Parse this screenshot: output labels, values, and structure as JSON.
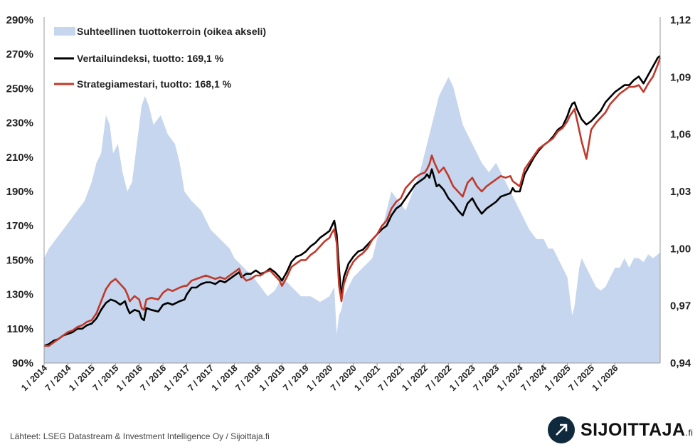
{
  "chart_data": {
    "type": "line",
    "title": "",
    "y_left": {
      "ticks": [
        "90%",
        "110%",
        "130%",
        "150%",
        "170%",
        "190%",
        "210%",
        "230%",
        "250%",
        "270%",
        "290%"
      ],
      "ylim": [
        90,
        290
      ]
    },
    "y_right": {
      "ticks": [
        "0,94",
        "0,97",
        "1,00",
        "1,03",
        "1,06",
        "1,09",
        "1,12"
      ],
      "ylim": [
        0.94,
        1.12
      ]
    },
    "x_ticks": [
      "1 / 2014",
      "7 / 2014",
      "1 / 2015",
      "7 / 2015",
      "1 / 2016",
      "7 / 2016",
      "1 / 2017",
      "7 / 2017",
      "1 / 2018",
      "7 / 2018",
      "1 / 2019",
      "7 / 2019",
      "1 / 2020",
      "7 / 2020",
      "1 / 2021",
      "7 / 2021",
      "1 / 2022",
      "7 / 2022",
      "1 / 2023",
      "7 / 2023",
      "1 / 2024",
      "7 / 2024",
      "1 / 2025",
      "7 / 2025",
      "1 / 2026"
    ],
    "xlim": [
      2014.0,
      2026.95
    ],
    "grid": false,
    "legend_position": "top-left",
    "series": [
      {
        "name": "Suhteellinen tuottokerroin (oikea akseli)",
        "type": "area",
        "axis": "right",
        "color": "#c5d6ee",
        "x": [
          2014.0,
          2014.1,
          2014.25,
          2014.4,
          2014.55,
          2014.7,
          2014.85,
          2015.0,
          2015.1,
          2015.2,
          2015.3,
          2015.38,
          2015.45,
          2015.55,
          2015.65,
          2015.75,
          2015.85,
          2015.95,
          2016.05,
          2016.12,
          2016.2,
          2016.3,
          2016.45,
          2016.6,
          2016.75,
          2016.85,
          2016.95,
          2017.1,
          2017.3,
          2017.5,
          2017.7,
          2017.9,
          2018.0,
          2018.2,
          2018.4,
          2018.55,
          2018.7,
          2018.85,
          2019.0,
          2019.2,
          2019.4,
          2019.6,
          2019.8,
          2020.0,
          2020.1,
          2020.15,
          2020.2,
          2020.25,
          2020.3,
          2020.4,
          2020.5,
          2020.7,
          2020.9,
          2021.0,
          2021.1,
          2021.2,
          2021.3,
          2021.45,
          2021.6,
          2021.75,
          2021.9,
          2022.0,
          2022.1,
          2022.2,
          2022.3,
          2022.4,
          2022.5,
          2022.6,
          2022.7,
          2022.8,
          2022.9,
          2023.0,
          2023.1,
          2023.2,
          2023.35,
          2023.5,
          2023.6,
          2023.7,
          2023.8,
          2023.9,
          2024.0,
          2024.1,
          2024.2,
          2024.35,
          2024.5,
          2024.6,
          2024.7,
          2024.8,
          2024.9,
          2025.0,
          2025.05,
          2025.1,
          2025.15,
          2025.2,
          2025.25,
          2025.3,
          2025.4,
          2025.5,
          2025.6,
          2025.7,
          2025.8,
          2025.9,
          2026.0,
          2026.1,
          2026.2,
          2026.3,
          2026.4,
          2026.5,
          2026.6,
          2026.7,
          2026.8,
          2026.9,
          2026.95
        ],
        "values": [
          0.995,
          1.0,
          1.005,
          1.01,
          1.015,
          1.02,
          1.025,
          1.035,
          1.045,
          1.05,
          1.07,
          1.065,
          1.05,
          1.055,
          1.04,
          1.03,
          1.035,
          1.055,
          1.075,
          1.08,
          1.075,
          1.065,
          1.07,
          1.06,
          1.055,
          1.045,
          1.03,
          1.025,
          1.02,
          1.01,
          1.005,
          1.0,
          0.995,
          0.99,
          0.985,
          0.98,
          0.975,
          0.978,
          0.985,
          0.98,
          0.975,
          0.975,
          0.972,
          0.975,
          0.98,
          0.955,
          0.965,
          0.968,
          0.975,
          0.98,
          0.985,
          0.99,
          0.995,
          1.005,
          1.01,
          1.02,
          1.03,
          1.025,
          1.02,
          1.03,
          1.04,
          1.05,
          1.06,
          1.07,
          1.08,
          1.085,
          1.09,
          1.085,
          1.075,
          1.065,
          1.06,
          1.055,
          1.05,
          1.045,
          1.04,
          1.045,
          1.04,
          1.035,
          1.03,
          1.025,
          1.02,
          1.015,
          1.01,
          1.005,
          1.005,
          1.0,
          1.0,
          0.995,
          0.99,
          0.985,
          0.975,
          0.965,
          0.97,
          0.98,
          0.99,
          0.995,
          0.99,
          0.985,
          0.98,
          0.978,
          0.98,
          0.985,
          0.99,
          0.99,
          0.995,
          0.99,
          0.995,
          0.995,
          0.993,
          0.997,
          0.995,
          0.997,
          0.998
        ]
      },
      {
        "name": "Vertailuindeksi, tuotto: 169,1 %",
        "type": "line",
        "axis": "left",
        "color": "#000000",
        "x": [
          2014.0,
          2014.1,
          2014.2,
          2014.3,
          2014.4,
          2014.5,
          2014.6,
          2014.7,
          2014.8,
          2014.9,
          2015.0,
          2015.1,
          2015.2,
          2015.3,
          2015.4,
          2015.5,
          2015.6,
          2015.7,
          2015.75,
          2015.8,
          2015.9,
          2016.0,
          2016.05,
          2016.1,
          2016.15,
          2016.25,
          2016.4,
          2016.5,
          2016.6,
          2016.7,
          2016.85,
          2016.95,
          2017.0,
          2017.1,
          2017.2,
          2017.3,
          2017.4,
          2017.5,
          2017.6,
          2017.7,
          2017.8,
          2017.9,
          2018.0,
          2018.1,
          2018.15,
          2018.25,
          2018.35,
          2018.45,
          2018.55,
          2018.65,
          2018.75,
          2018.85,
          2018.95,
          2019.0,
          2019.1,
          2019.2,
          2019.3,
          2019.4,
          2019.5,
          2019.6,
          2019.7,
          2019.8,
          2019.9,
          2020.0,
          2020.05,
          2020.1,
          2020.15,
          2020.2,
          2020.25,
          2020.3,
          2020.4,
          2020.5,
          2020.6,
          2020.7,
          2020.8,
          2020.9,
          2021.0,
          2021.1,
          2021.2,
          2021.3,
          2021.4,
          2021.5,
          2021.6,
          2021.7,
          2021.8,
          2021.9,
          2022.0,
          2022.05,
          2022.1,
          2022.15,
          2022.2,
          2022.25,
          2022.3,
          2022.4,
          2022.5,
          2022.6,
          2022.7,
          2022.8,
          2022.9,
          2023.0,
          2023.1,
          2023.2,
          2023.3,
          2023.4,
          2023.5,
          2023.6,
          2023.7,
          2023.8,
          2023.85,
          2023.9,
          2024.0,
          2024.1,
          2024.2,
          2024.3,
          2024.4,
          2024.5,
          2024.6,
          2024.7,
          2024.8,
          2024.9,
          2025.0,
          2025.05,
          2025.1,
          2025.15,
          2025.2,
          2025.3,
          2025.4,
          2025.5,
          2025.6,
          2025.7,
          2025.8,
          2025.9,
          2026.0,
          2026.1,
          2026.2,
          2026.3,
          2026.4,
          2026.5,
          2026.6,
          2026.7,
          2026.8,
          2026.9,
          2026.95
        ],
        "values": [
          100,
          101,
          103,
          104,
          106,
          107,
          108,
          110,
          110,
          112,
          113,
          116,
          121,
          125,
          127,
          126,
          124,
          126,
          122,
          119,
          121,
          120,
          116,
          115,
          122,
          121,
          120,
          124,
          125,
          124,
          126,
          127,
          130,
          134,
          134,
          136,
          137,
          137,
          136,
          138,
          137,
          139,
          141,
          143,
          140,
          142,
          142,
          144,
          142,
          143,
          145,
          143,
          140,
          138,
          143,
          149,
          152,
          153,
          155,
          158,
          160,
          163,
          165,
          167,
          170,
          173,
          165,
          145,
          128,
          140,
          148,
          152,
          155,
          156,
          159,
          162,
          165,
          168,
          170,
          176,
          180,
          182,
          186,
          190,
          194,
          196,
          198,
          200,
          198,
          203,
          198,
          193,
          194,
          191,
          186,
          183,
          179,
          176,
          183,
          186,
          181,
          177,
          180,
          182,
          184,
          187,
          188,
          189,
          192,
          190,
          190,
          200,
          205,
          210,
          214,
          217,
          219,
          222,
          226,
          228,
          234,
          238,
          241,
          242,
          238,
          232,
          229,
          231,
          234,
          237,
          242,
          245,
          248,
          250,
          252,
          252,
          255,
          257,
          253,
          258,
          263,
          268,
          269
        ]
      },
      {
        "name": "Strategiamestari, tuotto: 168,1 %",
        "type": "line",
        "axis": "left",
        "color": "#c0392b",
        "x": [
          2014.0,
          2014.1,
          2014.2,
          2014.3,
          2014.4,
          2014.5,
          2014.6,
          2014.7,
          2014.8,
          2014.9,
          2015.0,
          2015.1,
          2015.2,
          2015.3,
          2015.4,
          2015.5,
          2015.6,
          2015.7,
          2015.75,
          2015.8,
          2015.9,
          2016.0,
          2016.05,
          2016.1,
          2016.15,
          2016.25,
          2016.4,
          2016.5,
          2016.6,
          2016.7,
          2016.85,
          2016.95,
          2017.0,
          2017.1,
          2017.2,
          2017.3,
          2017.4,
          2017.5,
          2017.6,
          2017.7,
          2017.8,
          2017.9,
          2018.0,
          2018.1,
          2018.15,
          2018.25,
          2018.35,
          2018.45,
          2018.55,
          2018.65,
          2018.75,
          2018.85,
          2018.95,
          2019.0,
          2019.1,
          2019.2,
          2019.3,
          2019.4,
          2019.5,
          2019.6,
          2019.7,
          2019.8,
          2019.9,
          2020.0,
          2020.05,
          2020.1,
          2020.15,
          2020.2,
          2020.25,
          2020.3,
          2020.4,
          2020.5,
          2020.6,
          2020.7,
          2020.8,
          2020.9,
          2021.0,
          2021.1,
          2021.2,
          2021.3,
          2021.4,
          2021.5,
          2021.6,
          2021.7,
          2021.8,
          2021.9,
          2022.0,
          2022.05,
          2022.1,
          2022.15,
          2022.2,
          2022.25,
          2022.3,
          2022.4,
          2022.5,
          2022.6,
          2022.7,
          2022.8,
          2022.9,
          2023.0,
          2023.1,
          2023.2,
          2023.3,
          2023.4,
          2023.5,
          2023.6,
          2023.7,
          2023.8,
          2023.85,
          2023.9,
          2024.0,
          2024.1,
          2024.2,
          2024.3,
          2024.4,
          2024.5,
          2024.6,
          2024.7,
          2024.8,
          2024.9,
          2025.0,
          2025.05,
          2025.1,
          2025.15,
          2025.2,
          2025.3,
          2025.4,
          2025.5,
          2025.6,
          2025.7,
          2025.8,
          2025.9,
          2026.0,
          2026.1,
          2026.2,
          2026.3,
          2026.4,
          2026.5,
          2026.6,
          2026.7,
          2026.8,
          2026.9,
          2026.95
        ],
        "values": [
          100,
          100,
          102,
          104,
          106,
          108,
          109,
          111,
          112,
          114,
          115,
          119,
          126,
          133,
          137,
          139,
          136,
          133,
          130,
          126,
          129,
          127,
          122,
          121,
          127,
          128,
          127,
          131,
          133,
          132,
          134,
          135,
          135,
          138,
          139,
          140,
          141,
          140,
          139,
          140,
          139,
          141,
          143,
          145,
          141,
          138,
          139,
          141,
          141,
          143,
          144,
          141,
          138,
          135,
          140,
          146,
          148,
          150,
          150,
          153,
          155,
          158,
          161,
          163,
          166,
          168,
          160,
          135,
          126,
          136,
          144,
          149,
          152,
          154,
          157,
          162,
          165,
          170,
          173,
          180,
          184,
          186,
          192,
          195,
          198,
          200,
          201,
          203,
          206,
          211,
          207,
          204,
          201,
          204,
          199,
          193,
          190,
          187,
          195,
          198,
          193,
          190,
          193,
          195,
          197,
          199,
          198,
          199,
          196,
          195,
          193,
          203,
          207,
          211,
          215,
          217,
          219,
          221,
          225,
          227,
          231,
          234,
          236,
          238,
          232,
          219,
          209,
          226,
          230,
          233,
          236,
          241,
          244,
          247,
          249,
          251,
          251,
          252,
          248,
          253,
          257,
          264,
          268
        ]
      }
    ]
  },
  "footer": {
    "source": "Lähteet: LSEG Datastream & Investment Intelligence Oy / Sijoittaja.fi",
    "logo_text": "SIJOITTAJA",
    "logo_sub": ".fi"
  }
}
